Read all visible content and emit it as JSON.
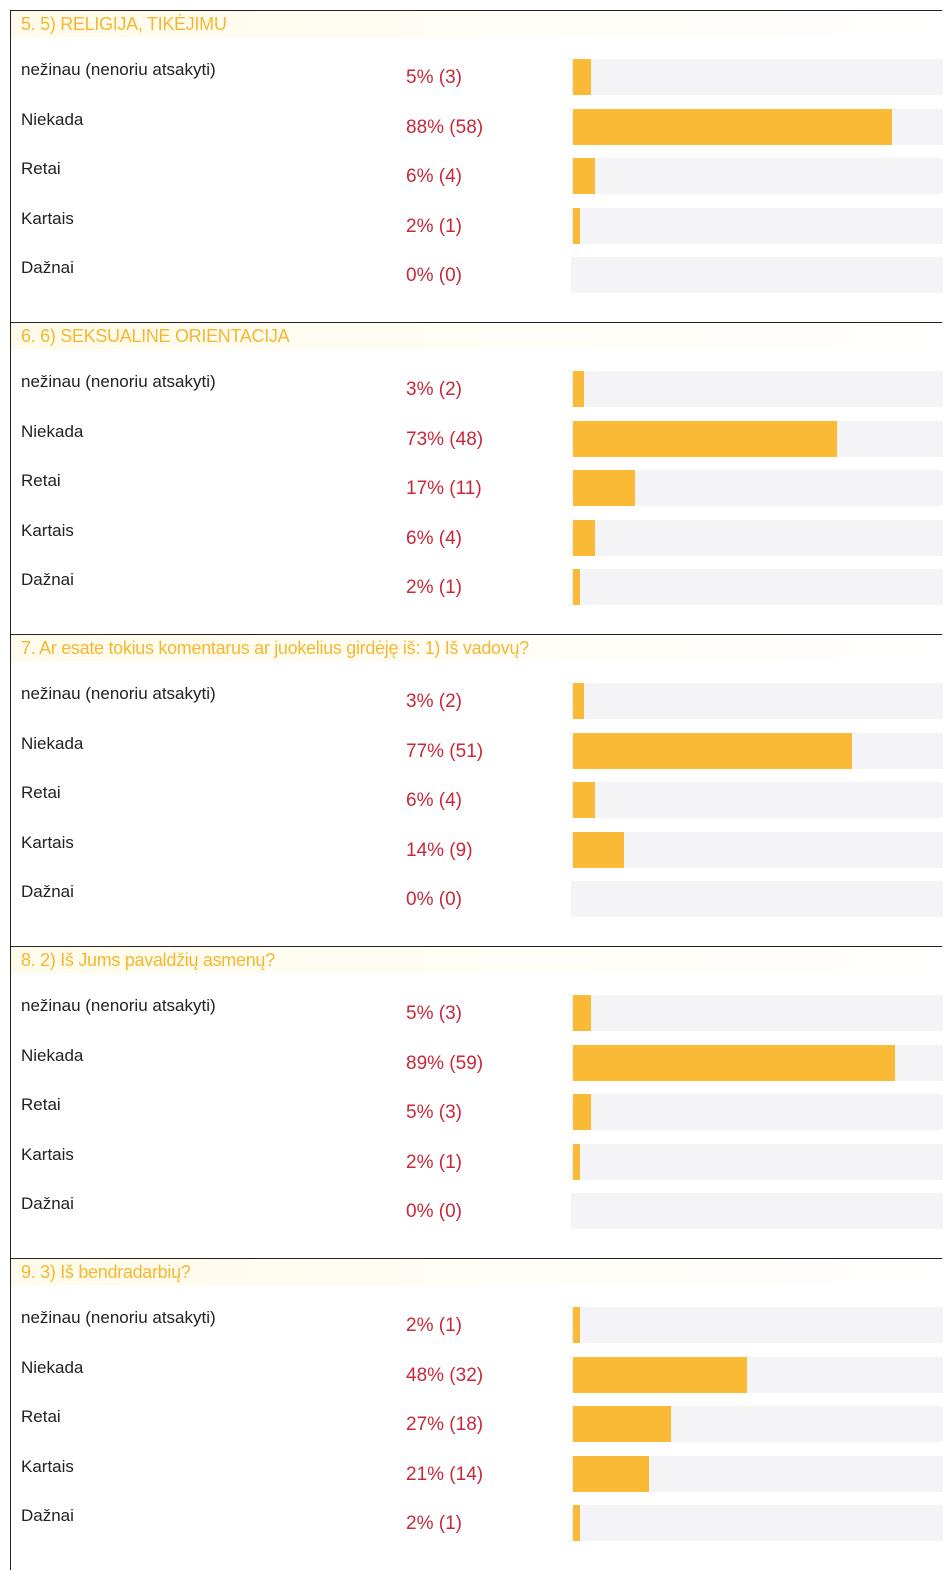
{
  "sections": [
    {
      "title": "5. 5) RELIGIJA, TIKĖJIMU",
      "rows": [
        {
          "label": "nežinau (nenoriu atsakyti)",
          "result": "5% (3)",
          "percent": 5
        },
        {
          "label": "Niekada",
          "result": "88% (58)",
          "percent": 88
        },
        {
          "label": "Retai",
          "result": "6% (4)",
          "percent": 6
        },
        {
          "label": "Kartais",
          "result": "2% (1)",
          "percent": 2
        },
        {
          "label": "Dažnai",
          "result": "0% (0)",
          "percent": 0
        }
      ]
    },
    {
      "title": "6. 6) SEKSUALINE ORIENTACIJA",
      "rows": [
        {
          "label": "nežinau (nenoriu atsakyti)",
          "result": "3% (2)",
          "percent": 3
        },
        {
          "label": "Niekada",
          "result": "73% (48)",
          "percent": 73
        },
        {
          "label": "Retai",
          "result": "17% (11)",
          "percent": 17
        },
        {
          "label": "Kartais",
          "result": "6% (4)",
          "percent": 6
        },
        {
          "label": "Dažnai",
          "result": "2% (1)",
          "percent": 2
        }
      ]
    },
    {
      "title": "7. Ar esate tokius komentarus ar juokelius girdėję iš: 1) Iš vadovų?",
      "rows": [
        {
          "label": "nežinau (nenoriu atsakyti)",
          "result": "3% (2)",
          "percent": 3
        },
        {
          "label": "Niekada",
          "result": "77% (51)",
          "percent": 77
        },
        {
          "label": "Retai",
          "result": "6% (4)",
          "percent": 6
        },
        {
          "label": "Kartais",
          "result": "14% (9)",
          "percent": 14
        },
        {
          "label": "Dažnai",
          "result": "0% (0)",
          "percent": 0
        }
      ]
    },
    {
      "title": "8. 2) Iš Jums pavaldžių asmenų?",
      "rows": [
        {
          "label": "nežinau (nenoriu atsakyti)",
          "result": "5% (3)",
          "percent": 5
        },
        {
          "label": "Niekada",
          "result": "89% (59)",
          "percent": 89
        },
        {
          "label": "Retai",
          "result": "5% (3)",
          "percent": 5
        },
        {
          "label": "Kartais",
          "result": "2% (1)",
          "percent": 2
        },
        {
          "label": "Dažnai",
          "result": "0% (0)",
          "percent": 0
        }
      ]
    },
    {
      "title": "9. 3) Iš bendradarbių?",
      "rows": [
        {
          "label": "nežinau (nenoriu atsakyti)",
          "result": "2% (1)",
          "percent": 2
        },
        {
          "label": "Niekada",
          "result": "48% (32)",
          "percent": 48
        },
        {
          "label": "Retai",
          "result": "27% (18)",
          "percent": 27
        },
        {
          "label": "Kartais",
          "result": "21% (14)",
          "percent": 21
        },
        {
          "label": "Dažnai",
          "result": "2% (1)",
          "percent": 2
        }
      ]
    }
  ]
}
